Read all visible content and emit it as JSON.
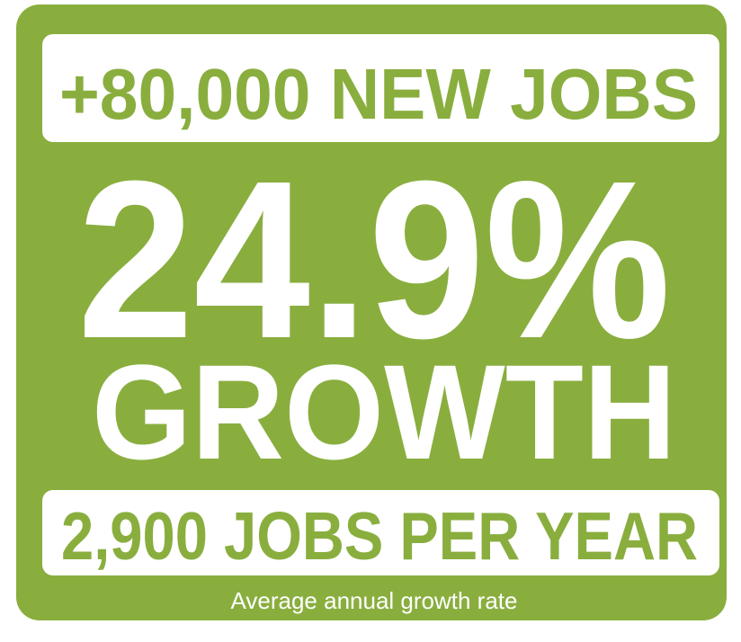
{
  "headline": "+80,000 NEW JOBS",
  "rate": "24.9%",
  "rate_label": "GROWTH",
  "per_year": "2,900 JOBS PER YEAR",
  "caption": "Average annual growth rate"
}
